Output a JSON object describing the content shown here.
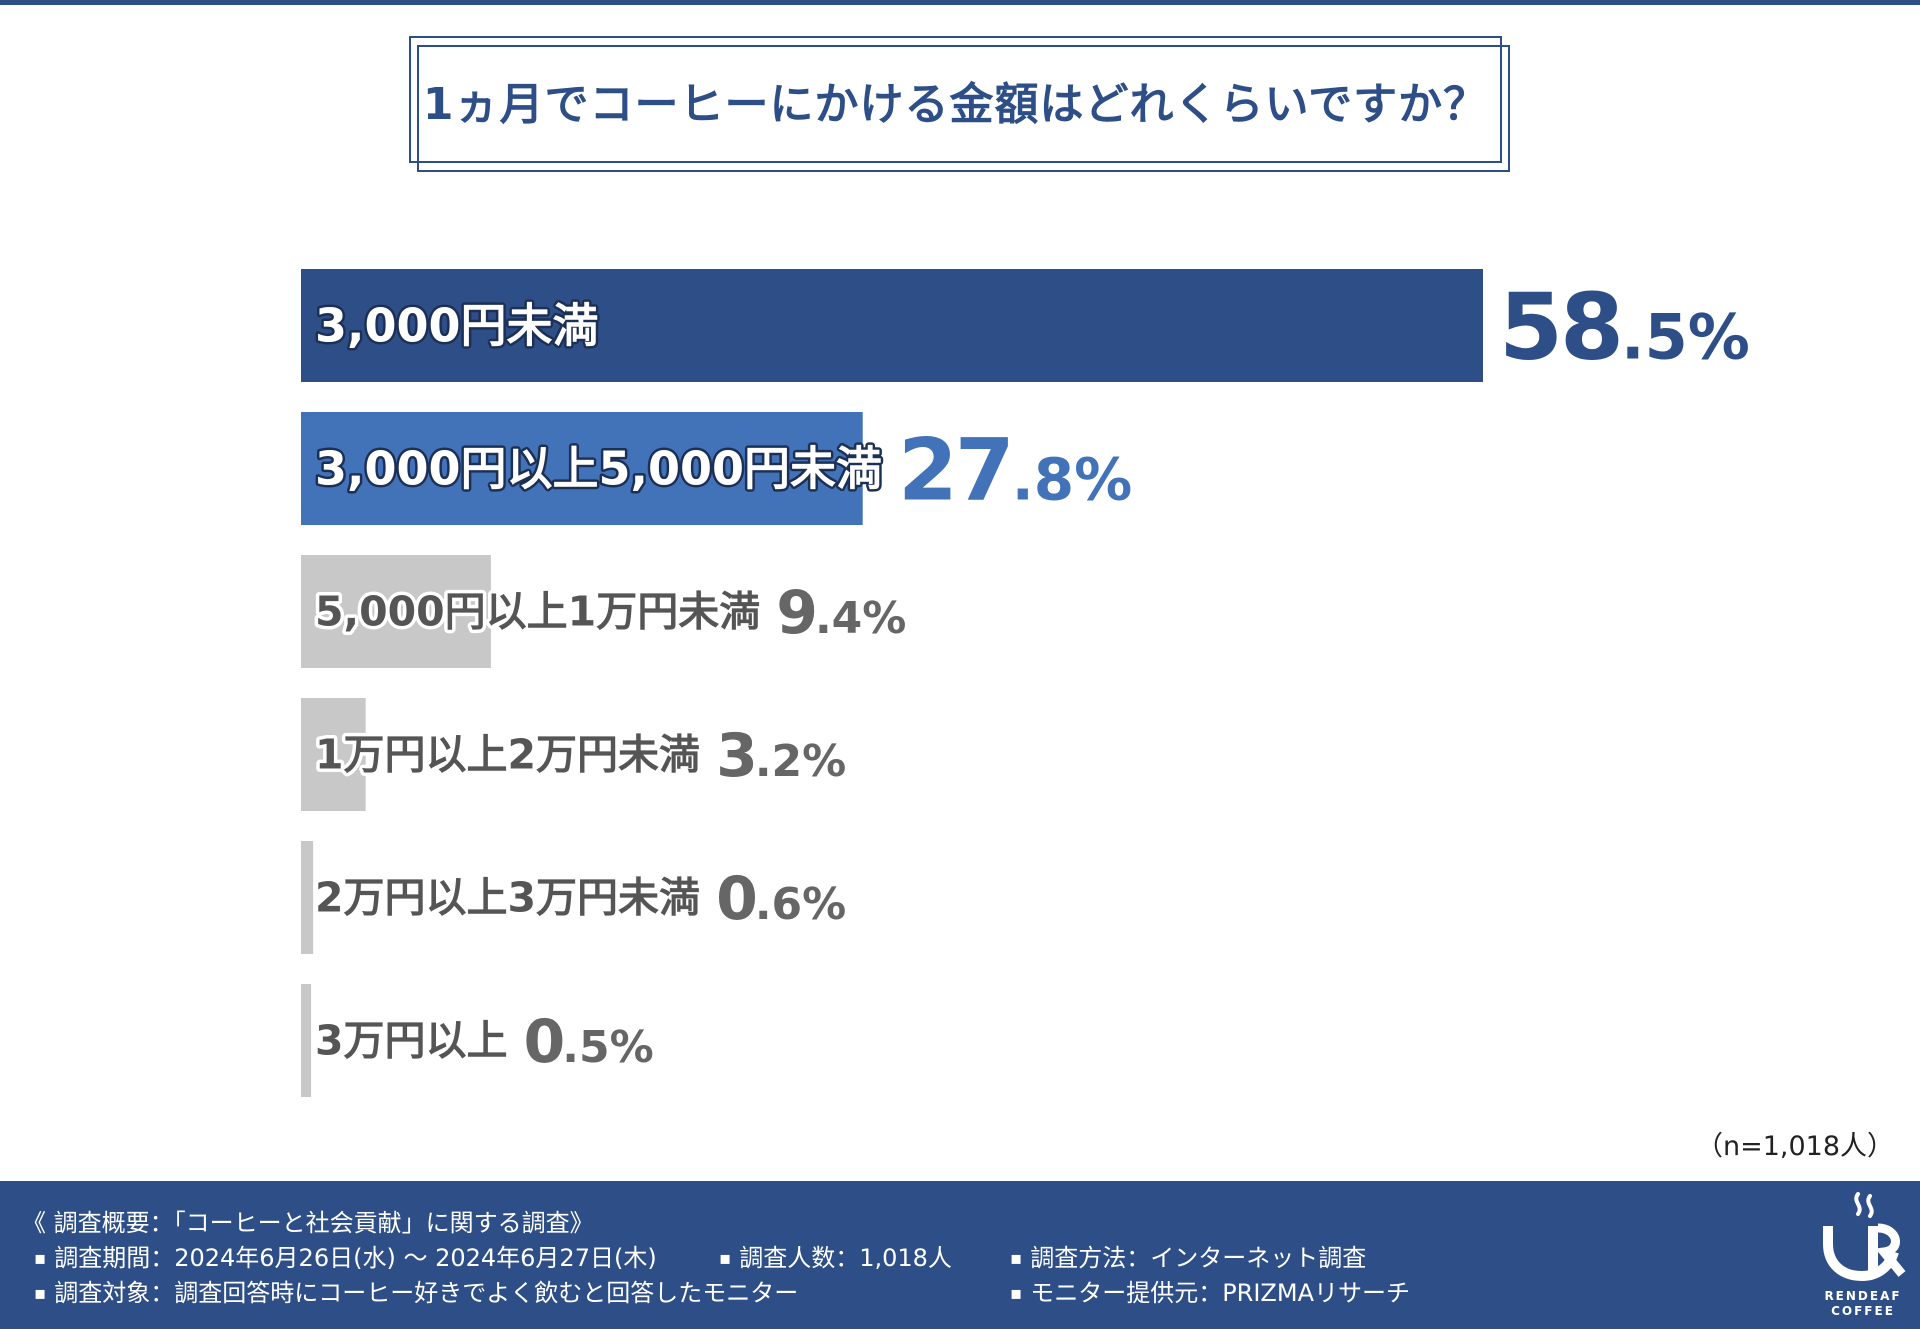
{
  "title": "1ヵ月でコーヒーにかける金額はどれくらいですか？",
  "colors": {
    "primary": "#2d4e86",
    "secondary": "#4272b8",
    "muted": "#c8c8c8",
    "muted_text": "#666666"
  },
  "chart_data": {
    "type": "bar",
    "orientation": "horizontal",
    "categories": [
      "3,000円未満",
      "3,000円以上5,000円未満",
      "5,000円以上1万円未満",
      "1万円以上2万円未満",
      "2万円以上3万円未満",
      "3万円以上"
    ],
    "values": [
      58.5,
      27.8,
      9.4,
      3.2,
      0.6,
      0.5
    ],
    "value_labels": [
      {
        "int": "58",
        "dec": ".5%"
      },
      {
        "int": "27",
        "dec": ".8%"
      },
      {
        "int": "9",
        "dec": ".4%"
      },
      {
        "int": "3",
        "dec": ".2%"
      },
      {
        "int": "0",
        "dec": ".6%"
      },
      {
        "int": "0",
        "dec": ".5%"
      }
    ],
    "unit": "%",
    "xlim": [
      0,
      58.5
    ],
    "grid": false
  },
  "sample_size": "（n=1,018人）",
  "footer": {
    "heading": "《 調査概要：「コーヒーと社会貢献」に関する調査》",
    "period": "調査期間：2024年6月26日(水) 〜 2024年6月27日(木)",
    "respondents": "調査人数：1,018人",
    "method": "調査方法：インターネット調査",
    "target": "調査対象：調査回答時にコーヒー好きでよく飲むと回答したモニター",
    "provider": "モニター提供元：PRIZMAリサーチ"
  },
  "logo": {
    "line1": "RENDEAF",
    "line2": "COFFEE"
  }
}
